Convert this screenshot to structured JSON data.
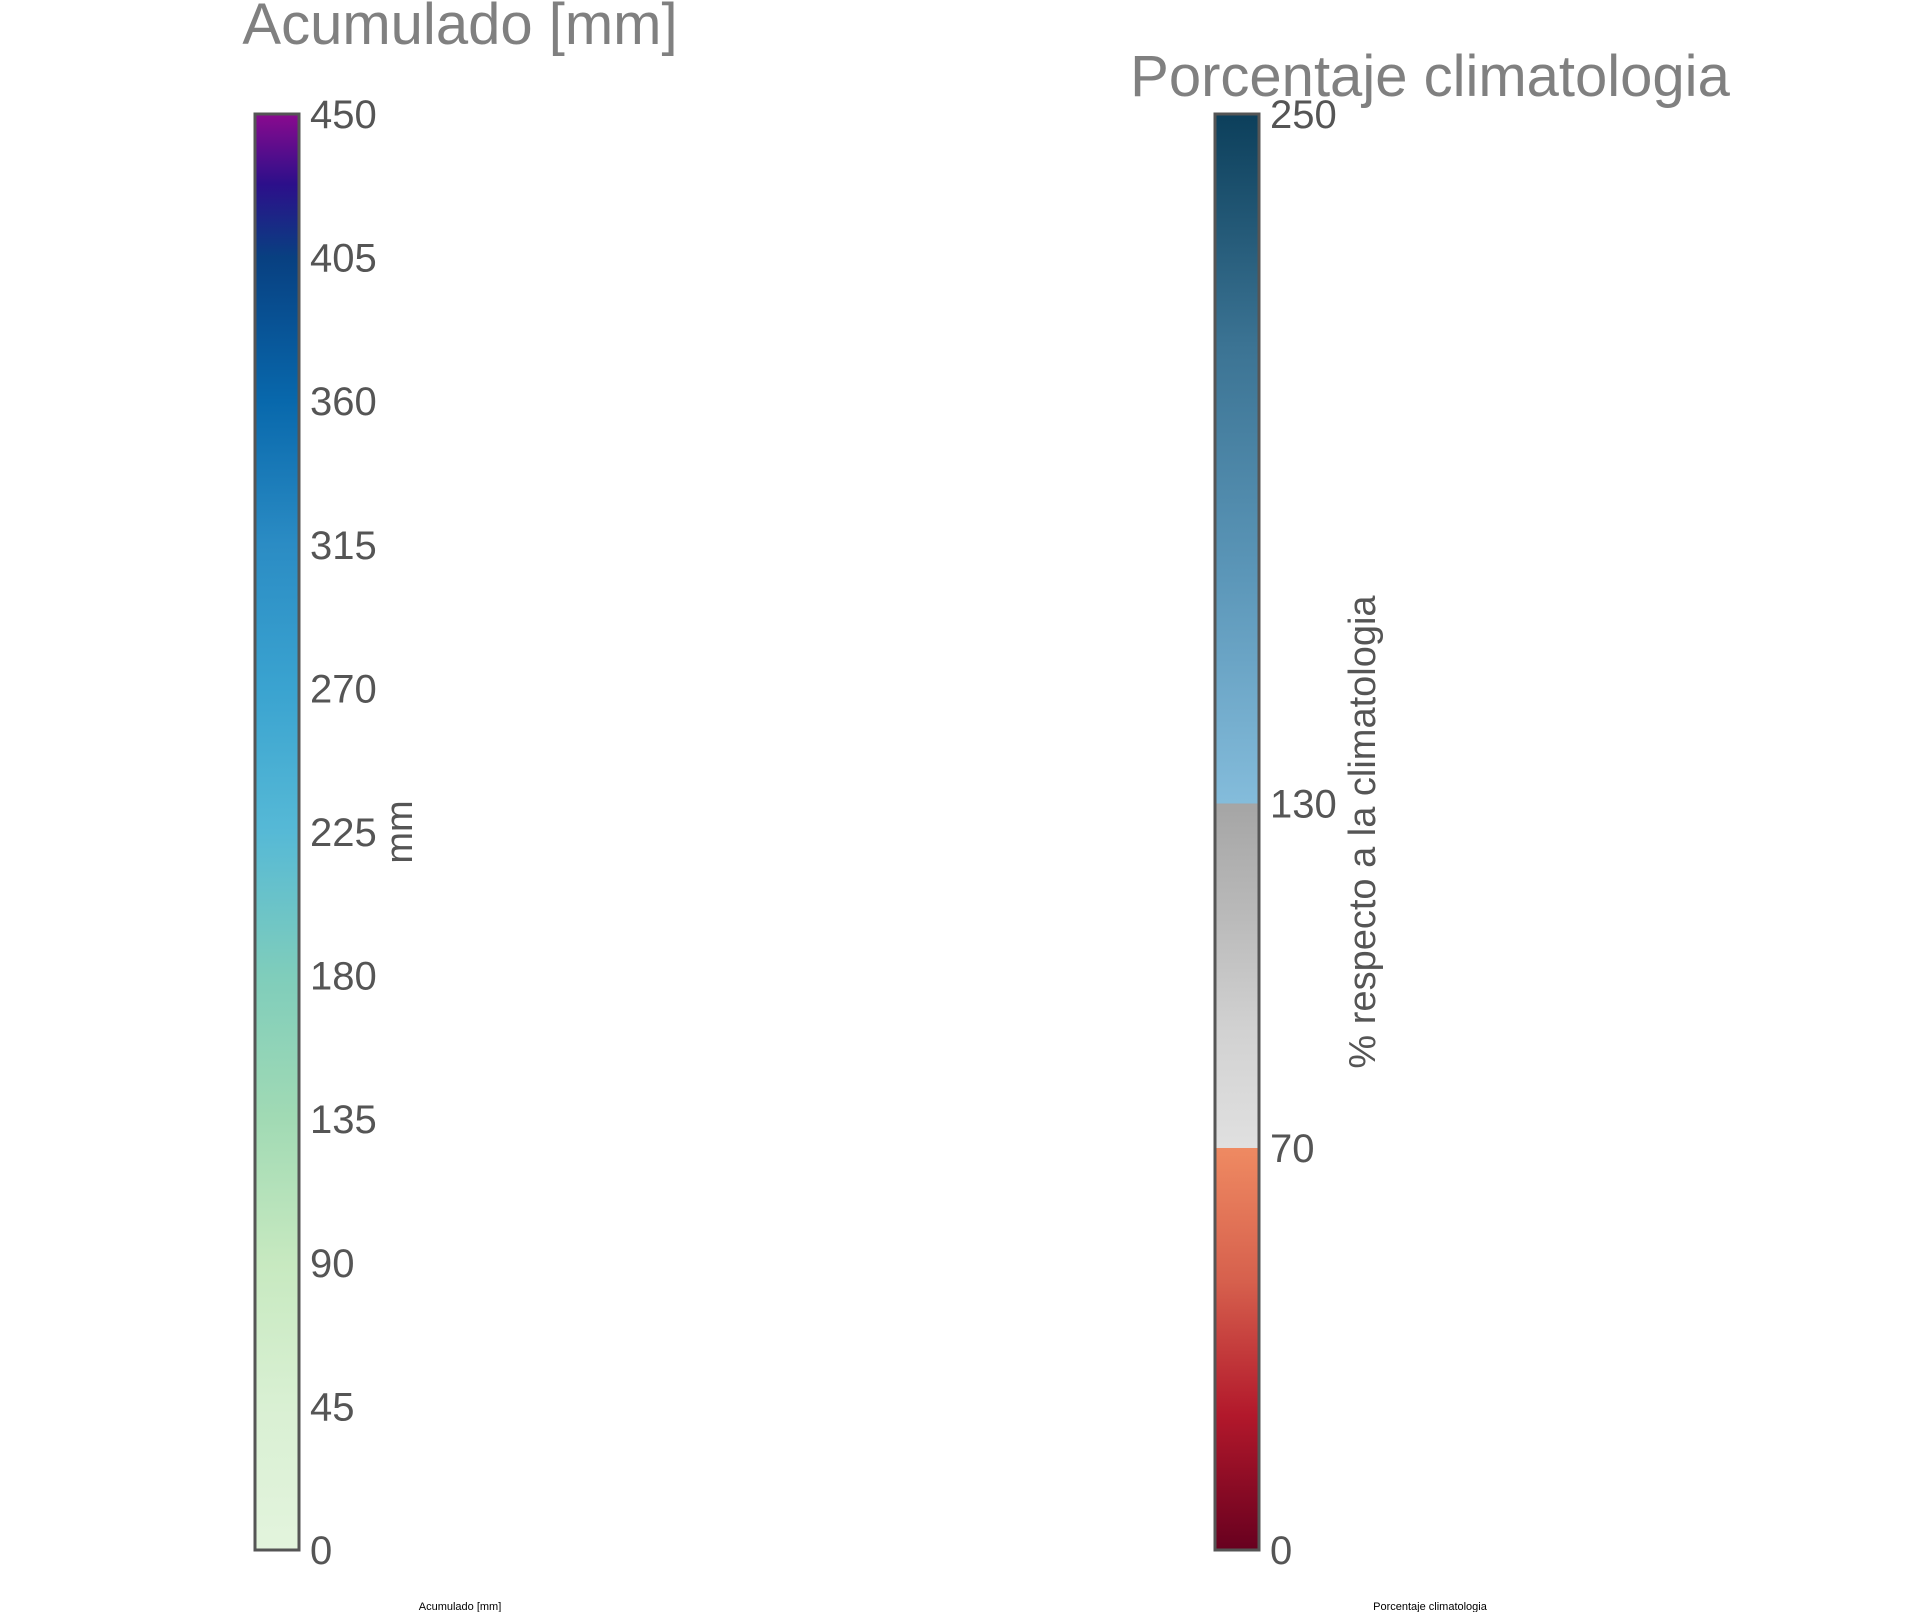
{
  "chart_data": [
    {
      "type": "colorbar",
      "title": "Acumulado [mm]",
      "ylabel": "mm",
      "caption": "Acumulado [mm]",
      "ylim": [
        0,
        450
      ],
      "ticks": [
        0,
        45,
        90,
        135,
        180,
        225,
        270,
        315,
        360,
        405,
        450
      ],
      "tick_labels": [
        "0",
        "45",
        "90",
        "135",
        "180",
        "225",
        "270",
        "315",
        "360",
        "405",
        "450"
      ],
      "colorscale": [
        {
          "value": 0,
          "color": "#e3f4dd"
        },
        {
          "value": 45,
          "color": "#d9f0d3"
        },
        {
          "value": 90,
          "color": "#c7e9c0"
        },
        {
          "value": 135,
          "color": "#a1dab4"
        },
        {
          "value": 180,
          "color": "#7fcdbb"
        },
        {
          "value": 225,
          "color": "#56b9d6"
        },
        {
          "value": 270,
          "color": "#3aa3d0"
        },
        {
          "value": 315,
          "color": "#2b8cc4"
        },
        {
          "value": 360,
          "color": "#0868ac"
        },
        {
          "value": 405,
          "color": "#084081"
        },
        {
          "value": 428,
          "color": "#2c0f8a"
        },
        {
          "value": 450,
          "color": "#8a0a8e"
        }
      ]
    },
    {
      "type": "colorbar",
      "title": "Porcentaje climatologia",
      "ylabel": "% respecto a la climatologia",
      "caption": "Porcentaje climatologia",
      "ylim": [
        0,
        250
      ],
      "ticks": [
        0,
        70,
        130,
        250
      ],
      "tick_labels": [
        "0",
        "70",
        "130",
        "250"
      ],
      "segments": [
        {
          "from": 0,
          "to": 70,
          "colors": [
            "#67001f",
            "#b2182b",
            "#d6604d",
            "#ef8a62"
          ]
        },
        {
          "from": 70,
          "to": 130,
          "colors": [
            "#e0e0e0",
            "#d2d2d2",
            "#bababa",
            "#a5a5a5"
          ]
        },
        {
          "from": 130,
          "to": 250,
          "colors": [
            "#84bcdb",
            "#5b96b8",
            "#3b7393",
            "#0c3f5b"
          ]
        }
      ]
    }
  ]
}
